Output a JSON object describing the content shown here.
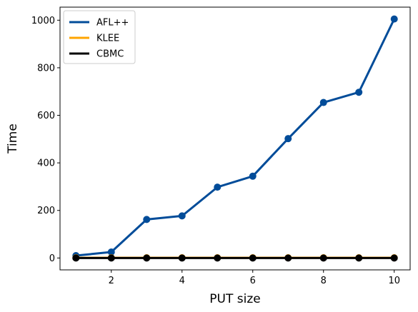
{
  "chart_data": {
    "type": "line",
    "xlabel": "PUT size",
    "ylabel": "Time",
    "x": [
      1,
      2,
      3,
      4,
      5,
      6,
      7,
      8,
      9,
      10
    ],
    "xlim": [
      0.55,
      10.45
    ],
    "ylim": [
      -50,
      1055
    ],
    "xticks": [
      2,
      4,
      6,
      8,
      10
    ],
    "yticks": [
      0,
      200,
      400,
      600,
      800,
      1000
    ],
    "grid": false,
    "legend_position": "top-left",
    "series": [
      {
        "name": "AFL++",
        "color": "#014c99",
        "values": [
          10,
          25,
          162,
          177,
          298,
          344,
          502,
          654,
          697,
          1005
        ]
      },
      {
        "name": "KLEE",
        "color": "#ffa500",
        "values": [
          1,
          1,
          1,
          1,
          1,
          1,
          1,
          1,
          1,
          1
        ]
      },
      {
        "name": "CBMC",
        "color": "#000000",
        "values": [
          0,
          0,
          0,
          0,
          0,
          0,
          0,
          0,
          0,
          0
        ]
      }
    ]
  }
}
